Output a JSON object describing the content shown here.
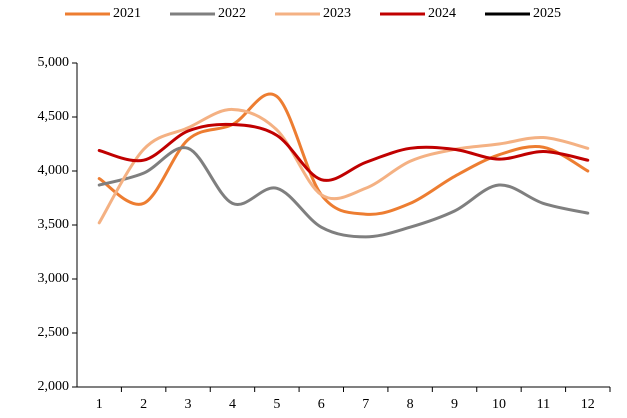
{
  "chart_data": {
    "type": "line",
    "categories": [
      "1",
      "2",
      "3",
      "4",
      "5",
      "6",
      "7",
      "8",
      "9",
      "10",
      "11",
      "12"
    ],
    "series": [
      {
        "name": "2021",
        "color": "#ed7d31",
        "values": [
          3930,
          3700,
          4290,
          4430,
          4690,
          3780,
          3600,
          3700,
          3950,
          4150,
          4220,
          4000
        ]
      },
      {
        "name": "2022",
        "color": "#7f7f7f",
        "values": [
          3870,
          3980,
          4210,
          3700,
          3840,
          3480,
          3390,
          3480,
          3630,
          3870,
          3700,
          3610
        ]
      },
      {
        "name": "2023",
        "color": "#f4b183",
        "values": [
          3520,
          4200,
          4400,
          4570,
          4380,
          3780,
          3840,
          4090,
          4200,
          4250,
          4310,
          4210
        ]
      },
      {
        "name": "2024",
        "color": "#c00000",
        "values": [
          4190,
          4100,
          4370,
          4430,
          4330,
          3920,
          4080,
          4210,
          4200,
          4110,
          4180,
          4100
        ]
      },
      {
        "name": "2025",
        "color": "#000000",
        "values": [
          null,
          null,
          null,
          null,
          null,
          null,
          null,
          null,
          null,
          null,
          null,
          null
        ]
      }
    ],
    "ylim": [
      2000,
      5000
    ],
    "yticks": [
      {
        "value": 2000,
        "label": "2,000"
      },
      {
        "value": 2500,
        "label": "2,500"
      },
      {
        "value": 3000,
        "label": "3,000"
      },
      {
        "value": 3500,
        "label": "3,500"
      },
      {
        "value": 4000,
        "label": "4,000"
      },
      {
        "value": 4500,
        "label": "4,500"
      },
      {
        "value": 5000,
        "label": "5,000"
      }
    ],
    "smooth": true,
    "legend": "top"
  }
}
